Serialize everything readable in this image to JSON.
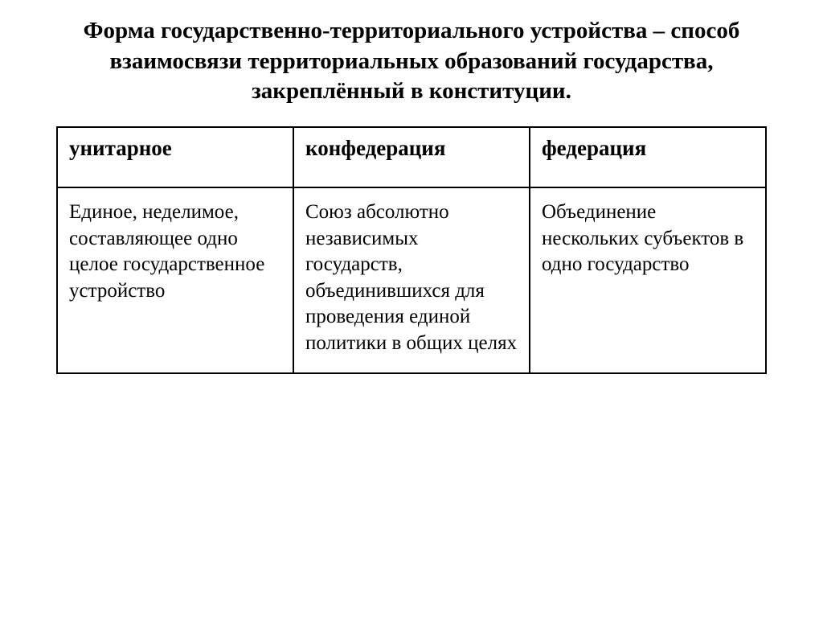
{
  "title": "Форма государственно-территориального устройства – способ взаимосвязи территориальных образований государства, закреплённый в конституции.",
  "table": {
    "headers": [
      "унитарное",
      "конфедерация",
      "федерация"
    ],
    "cells": [
      "Единое, неделимое, составляющее одно целое государственное устройство",
      "Союз абсолютно независимых государств, объединившихся для проведения единой политики в общих целях",
      "Объединение нескольких субъектов в одно государство"
    ],
    "border_color": "#000000",
    "background_color": "#ffffff",
    "header_fontsize": 27,
    "header_fontweight": "bold",
    "cell_fontsize": 25,
    "cell_fontweight": "normal",
    "title_fontsize": 29,
    "title_fontweight": "bold",
    "font_family": "Times New Roman"
  }
}
